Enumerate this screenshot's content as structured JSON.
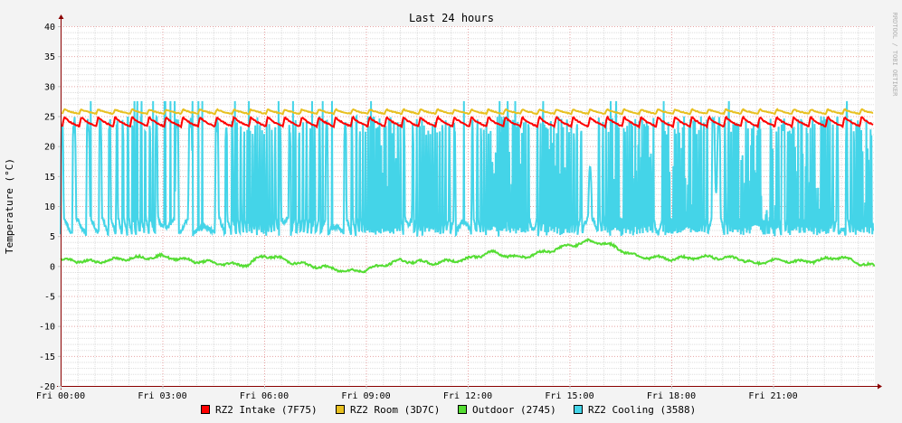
{
  "chart_data": {
    "type": "line",
    "title": "Last 24 hours",
    "ylabel": "Temperature (°C)",
    "xlabel": "",
    "watermark": "RRDTOOL / TOBI OETIKER",
    "ylim": [
      -20,
      40
    ],
    "yticks": [
      -20,
      -15,
      -10,
      -5,
      0,
      5,
      10,
      15,
      20,
      25,
      30,
      35,
      40
    ],
    "ytick_labels": [
      "-20",
      "-15",
      "-10",
      "-5",
      "0",
      "5",
      "10",
      "15",
      "20",
      "25",
      "30",
      "35",
      "40"
    ],
    "xlim_hours": [
      0,
      24
    ],
    "xticks_hours": [
      0,
      3,
      6,
      9,
      12,
      15,
      18,
      21
    ],
    "xtick_labels": [
      "Fri 00:00",
      "Fri 03:00",
      "Fri 06:00",
      "Fri 09:00",
      "Fri 12:00",
      "Fri 15:00",
      "Fri 18:00",
      "Fri 21:00"
    ],
    "grid": true,
    "legend_position": "bottom",
    "colors": {
      "background": "#f3f3f3",
      "canvas": "#ffffff",
      "major_grid": "#e8a4a4",
      "minor_grid": "#dddddd",
      "axis": "#8b0000",
      "text": "#000000"
    },
    "series": [
      {
        "name": "RZ2 Intake (7F75)",
        "color": "#ff0000",
        "pattern": "sawtooth",
        "base": 23.3,
        "peak": 25.0,
        "period_hours": 0.5,
        "noise": 0.2,
        "t_start": 0.05,
        "t_end": 23.95
      },
      {
        "name": "RZ2 Room (3D7C)",
        "color": "#e8c020",
        "pattern": "sawtooth",
        "base": 25.4,
        "peak": 26.2,
        "period_hours": 0.5,
        "noise": 0.15,
        "t_start": 0.05,
        "t_end": 23.95
      },
      {
        "name": "Outdoor (2745)",
        "color": "#55dd33",
        "pattern": "curve",
        "t_start": 0.0,
        "t_end": 24.0,
        "noise": 0.35,
        "points": [
          [
            0,
            1.0
          ],
          [
            1,
            0.7
          ],
          [
            2,
            1.3
          ],
          [
            3,
            1.6
          ],
          [
            4,
            0.8
          ],
          [
            5,
            0.3
          ],
          [
            5.5,
            0.2
          ],
          [
            6,
            1.8
          ],
          [
            6.5,
            1.2
          ],
          [
            7,
            0.4
          ],
          [
            8,
            -0.4
          ],
          [
            8.5,
            -0.9
          ],
          [
            9,
            -0.6
          ],
          [
            10,
            0.9
          ],
          [
            11,
            0.5
          ],
          [
            12,
            1.2
          ],
          [
            12.7,
            2.3
          ],
          [
            13.5,
            1.4
          ],
          [
            14,
            2.0
          ],
          [
            15,
            3.4
          ],
          [
            15.5,
            4.1
          ],
          [
            16,
            3.9
          ],
          [
            17,
            1.6
          ],
          [
            18,
            1.2
          ],
          [
            19,
            1.5
          ],
          [
            20,
            1.3
          ],
          [
            20.5,
            0.3
          ],
          [
            21,
            1.0
          ],
          [
            22,
            0.7
          ],
          [
            23,
            1.5
          ],
          [
            23.6,
            0.4
          ],
          [
            24,
            0.0
          ]
        ]
      },
      {
        "name": "RZ2 Cooling (3588)",
        "color": "#44d4e8",
        "pattern": "spiky",
        "base": 5.3,
        "peak": 24.0,
        "period_hours": 0.33,
        "t_start": 0.0,
        "t_end": 23.95
      }
    ]
  }
}
